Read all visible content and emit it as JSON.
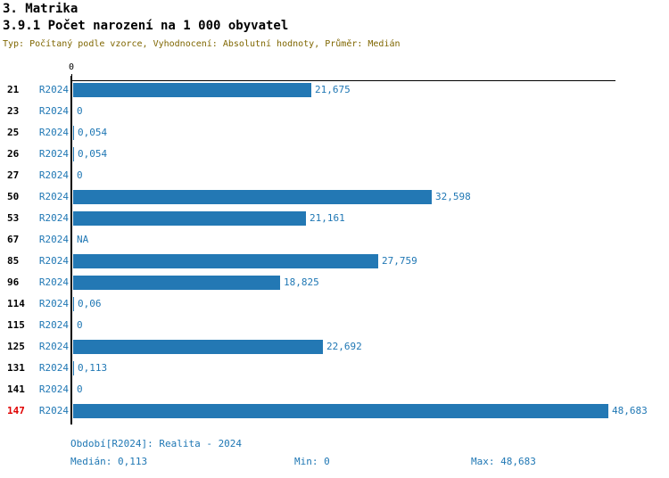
{
  "header": {
    "section_title": "3. Matrika",
    "chart_title": "3.9.1 Počet narození na 1 000 obyvatel",
    "meta": "Typ: Počítaný podle vzorce, Vyhodnocení: Absolutní hodnoty, Průměr: Medián"
  },
  "chart_data": {
    "type": "bar",
    "orientation": "horizontal",
    "title": "3.9.1 Počet narození na 1 000 obyvatel",
    "axis_zero_label": "0",
    "series_name": "R2024",
    "xlim": [
      0,
      48.683
    ],
    "grid": false,
    "rows": [
      {
        "id": "21",
        "period": "R2024",
        "value": 21.675,
        "label": "21,675",
        "highlight": false
      },
      {
        "id": "23",
        "period": "R2024",
        "value": 0,
        "label": "0",
        "highlight": false
      },
      {
        "id": "25",
        "period": "R2024",
        "value": 0.054,
        "label": "0,054",
        "highlight": false
      },
      {
        "id": "26",
        "period": "R2024",
        "value": 0.054,
        "label": "0,054",
        "highlight": false
      },
      {
        "id": "27",
        "period": "R2024",
        "value": 0,
        "label": "0",
        "highlight": false
      },
      {
        "id": "50",
        "period": "R2024",
        "value": 32.598,
        "label": "32,598",
        "highlight": false
      },
      {
        "id": "53",
        "period": "R2024",
        "value": 21.161,
        "label": "21,161",
        "highlight": false
      },
      {
        "id": "67",
        "period": "R2024",
        "value": null,
        "label": "NA",
        "highlight": false
      },
      {
        "id": "85",
        "period": "R2024",
        "value": 27.759,
        "label": "27,759",
        "highlight": false
      },
      {
        "id": "96",
        "period": "R2024",
        "value": 18.825,
        "label": "18,825",
        "highlight": false
      },
      {
        "id": "114",
        "period": "R2024",
        "value": 0.06,
        "label": "0,06",
        "highlight": false
      },
      {
        "id": "115",
        "period": "R2024",
        "value": 0,
        "label": "0",
        "highlight": false
      },
      {
        "id": "125",
        "period": "R2024",
        "value": 22.692,
        "label": "22,692",
        "highlight": false
      },
      {
        "id": "131",
        "period": "R2024",
        "value": 0.113,
        "label": "0,113",
        "highlight": false
      },
      {
        "id": "141",
        "period": "R2024",
        "value": 0,
        "label": "0",
        "highlight": false
      },
      {
        "id": "147",
        "period": "R2024",
        "value": 48.683,
        "label": "48,683",
        "highlight": true
      }
    ]
  },
  "footer": {
    "period_line": "Období[R2024]: Realita - 2024",
    "median_label": "Medián: 0,113",
    "min_label": "Min: 0",
    "max_label": "Max: 48,683"
  },
  "colors": {
    "bar_blue": "#2378b4",
    "text_blue": "#1f77b4",
    "meta_olive": "#7f6600",
    "highlight_red": "#e00000",
    "axis_black": "#000000"
  }
}
